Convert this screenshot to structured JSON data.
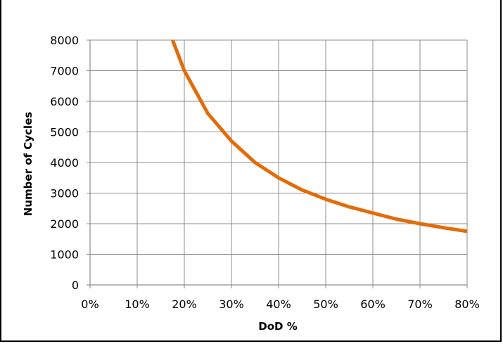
{
  "chart_data": {
    "type": "line",
    "title": "",
    "xlabel": "DoD %",
    "ylabel": "Number of Cycles",
    "x_tick_labels": [
      "0%",
      "10%",
      "20%",
      "30%",
      "40%",
      "50%",
      "60%",
      "70%",
      "80%"
    ],
    "y_tick_labels": [
      "0",
      "1000",
      "2000",
      "3000",
      "4000",
      "5000",
      "6000",
      "7000",
      "8000"
    ],
    "xlim": [
      0,
      80
    ],
    "ylim": [
      0,
      8000
    ],
    "grid": true,
    "legend": "none",
    "series": [
      {
        "color": "#e36c0a",
        "x": [
          17.5,
          20,
          25,
          30,
          35,
          40,
          45,
          50,
          55,
          60,
          65,
          70,
          75,
          80
        ],
        "y": [
          8000,
          7000,
          5600,
          4700,
          4000,
          3500,
          3100,
          2800,
          2550,
          2350,
          2150,
          2000,
          1870,
          1750
        ]
      }
    ]
  }
}
